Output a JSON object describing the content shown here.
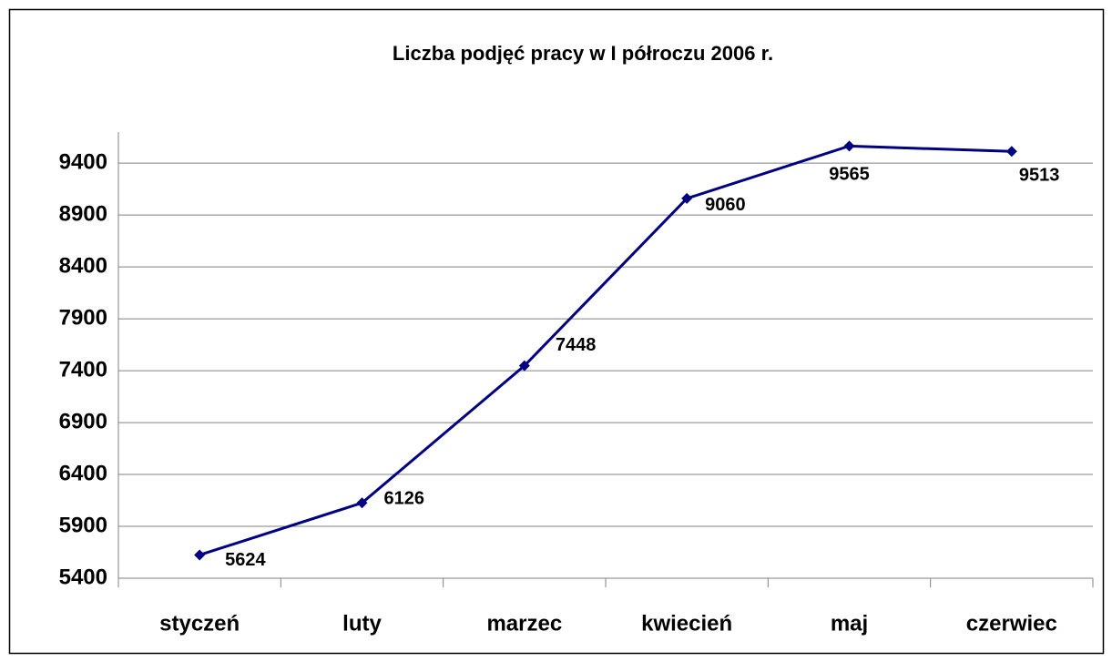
{
  "chart_data": {
    "type": "line",
    "title": "Liczba podjęć pracy w I półroczu 2006 r.",
    "categories": [
      "styczeń",
      "luty",
      "marzec",
      "kwiecień",
      "maj",
      "czerwiec"
    ],
    "series": [
      {
        "name": "Liczba podjęć pracy",
        "color": "#000080",
        "values": [
          5624,
          6126,
          7448,
          9060,
          9565,
          9513
        ]
      }
    ],
    "ylim": [
      5400,
      9700
    ],
    "yticks": [
      5400,
      5900,
      6400,
      6900,
      7400,
      7900,
      8400,
      8900,
      9400
    ],
    "grid": true
  }
}
